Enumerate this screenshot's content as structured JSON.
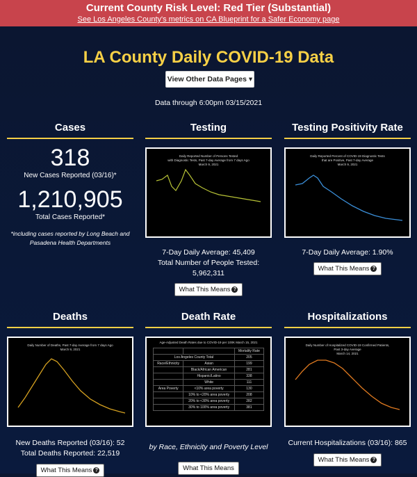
{
  "banner": {
    "risk_level": "Current County Risk Level: Red Tier (Substantial)",
    "link_text": "See Los Angeles County's metrics on CA Blueprint for a Safer Economy page"
  },
  "header": {
    "title": "LA County Daily COVID-19 Data",
    "dropdown_label": "View Other Data Pages",
    "data_through": "Data through 6:00pm 03/15/2021"
  },
  "cases": {
    "title": "Cases",
    "new_cases": "318",
    "new_cases_label": "New Cases Reported (03/16)*",
    "total_cases": "1,210,905",
    "total_cases_label": "Total Cases Reported*",
    "note": "*including cases reported by Long Beach and Pasadena Health Departments"
  },
  "testing": {
    "title": "Testing",
    "chart_title": "Daily Reported Number of Persons Tested with Diagnostic Tests, Past 7-day Average from 7 days Ago March 9, 2021",
    "daily_avg": "7-Day Daily Average: 45,409",
    "total_tested": "Total Number of People Tested: 5,962,311",
    "button": "What This Means"
  },
  "positivity": {
    "title": "Testing Positivity Rate",
    "chart_title": "Daily Reported Percent of COVID-19 Diagnostic Tests that are Positive, Past 7-day Average March 9, 2021",
    "daily_avg": "7-Day Daily Average: 1.90%",
    "button": "What This Means"
  },
  "deaths": {
    "title": "Deaths",
    "chart_title": "Daily Number of Deaths, Past 7-day Average from 7 days Ago March 9, 2021",
    "new_deaths": "New Deaths Reported (03/16): 52",
    "total_deaths": "Total Deaths Reported: 22,519",
    "button": "What This Means"
  },
  "death_rate": {
    "title": "Death Rate",
    "chart_title": "Age-Adjusted Death Rates due to COVID-19 per 100K March 15, 2021",
    "table_header": "Mortality Rate",
    "table_county": "Los Angeles County Total",
    "table_county_value": "205",
    "rows": [
      [
        "Race/Ethnicity",
        "Asian",
        "199"
      ],
      [
        "",
        "Black/African American",
        "281"
      ],
      [
        "",
        "Hispanic/Latino",
        "338"
      ],
      [
        "",
        "White",
        "111"
      ],
      [
        "Area Poverty",
        "<10% area poverty",
        "130"
      ],
      [
        "",
        "10% to <20% area poverty",
        "208"
      ],
      [
        "",
        "20% to <30% area poverty",
        "282"
      ],
      [
        "",
        "30% to 100% area poverty",
        "381"
      ]
    ],
    "caption": "by Race, Ethnicity and Poverty Level",
    "button": "What This Means"
  },
  "hospitalizations": {
    "title": "Hospitalizations",
    "chart_title": "Daily Number of Hospitalized COVID-19 Confirmed Patients, Past 3-day Average March 14, 2021",
    "current": "Current Hospitalizations (03/16): 865",
    "button": "What This Means"
  },
  "colors": {
    "banner": "#c8444c",
    "accent": "#f7d046",
    "testing_line": "#b7c236",
    "positivity_line": "#3b8fd9",
    "deaths_line": "#d4a020",
    "hosp_line": "#e07a20"
  }
}
